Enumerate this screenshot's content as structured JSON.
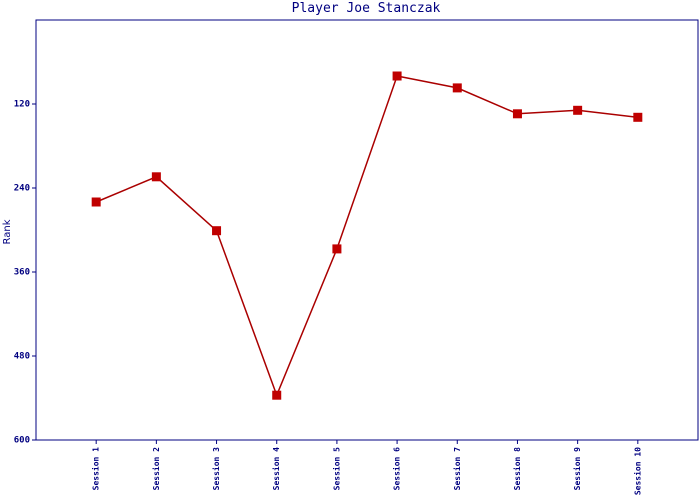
{
  "chart_data": {
    "type": "line",
    "title": "Player Joe Stanczak",
    "y_label": "Rank",
    "categories": [
      "Session 1",
      "Session 2",
      "Session 3",
      "Session 4",
      "Session 5",
      "Session 6",
      "Session 7",
      "Session 8",
      "Session 9",
      "Session 10"
    ],
    "series": [
      {
        "color": "#aa0000",
        "marker_color": "#c00000",
        "values": [
          260,
          224,
          301,
          536,
          327,
          80,
          97,
          134,
          129,
          139
        ]
      }
    ],
    "ylim": [
      0,
      600
    ],
    "yticks": [
      120,
      240,
      360,
      480,
      600
    ],
    "y_inverted": true,
    "grid": false
  }
}
